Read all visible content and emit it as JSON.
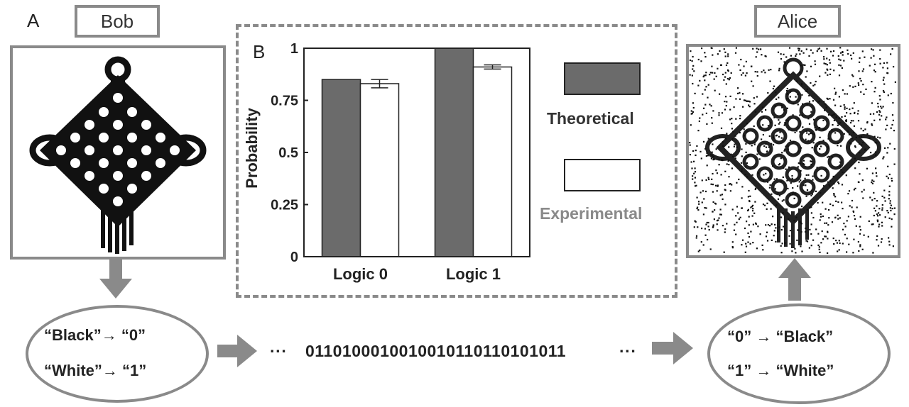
{
  "panels": {
    "a_label": "A",
    "b_label": "B"
  },
  "sender": {
    "name": "Bob"
  },
  "receiver": {
    "name": "Alice"
  },
  "encoding": {
    "line1": "“Black”→ “0”",
    "line2": "“White”→ “1”"
  },
  "decoding": {
    "line1": "“0” → “Black”",
    "line2": "“1” → “White”"
  },
  "bitstream": {
    "dots_left": "···",
    "bits": "0110100010010010110110101011",
    "dots_right": "···"
  },
  "colors": {
    "theoretical": "#6b6b6b",
    "experimental": "#ffffff",
    "frame": "#8a8a8a",
    "arrow": "#8a8a8a"
  },
  "chart_data": {
    "type": "bar",
    "categories": [
      "Logic 0",
      "Logic 1"
    ],
    "series": [
      {
        "name": "Theoretical",
        "values": [
          0.85,
          1.0
        ]
      },
      {
        "name": "Experimental",
        "values": [
          0.83,
          0.91
        ],
        "error": [
          0.02,
          0.01
        ]
      }
    ],
    "ylabel": "Probability",
    "yticks": [
      "0",
      "0.25",
      "0.5",
      "0.75",
      "1"
    ],
    "ylim": [
      0,
      1
    ],
    "legend_position": "right"
  }
}
